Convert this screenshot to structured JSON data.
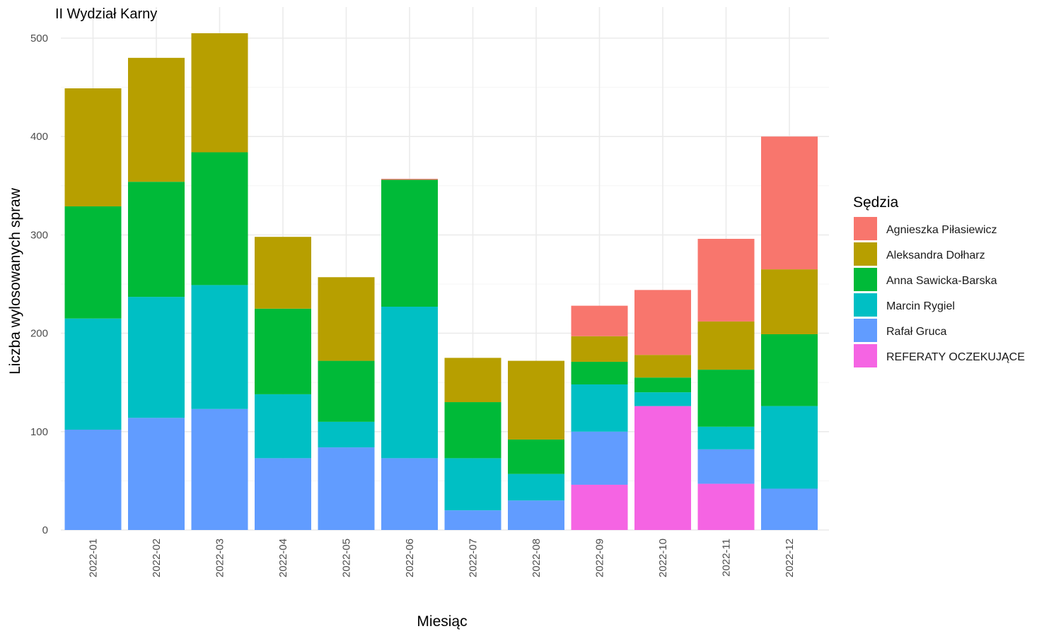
{
  "chart_data": {
    "type": "bar",
    "stacked": true,
    "title": "II Wydział Karny",
    "xlabel": "Miesiąc",
    "ylabel": "Liczba wylosowanych spraw",
    "ylim": [
      0,
      520
    ],
    "yticks": [
      0,
      100,
      200,
      300,
      400,
      500
    ],
    "grid": true,
    "legend": {
      "title": "Sędzia",
      "position": "right"
    },
    "categories": [
      "2022-01",
      "2022-02",
      "2022-03",
      "2022-04",
      "2022-05",
      "2022-06",
      "2022-07",
      "2022-08",
      "2022-09",
      "2022-10",
      "2022-11",
      "2022-12"
    ],
    "series": [
      {
        "name": "Agnieszka Piłasiewicz",
        "color": "#F8766D",
        "values": [
          0,
          0,
          0,
          0,
          0,
          1,
          0,
          0,
          31,
          66,
          84,
          135
        ]
      },
      {
        "name": "Aleksandra Dołharz",
        "color": "#B79F00",
        "values": [
          120,
          126,
          121,
          73,
          85,
          0,
          45,
          80,
          26,
          23,
          49,
          66
        ]
      },
      {
        "name": "Anna Sawicka-Barska",
        "color": "#00BA38",
        "values": [
          114,
          117,
          135,
          87,
          62,
          129,
          57,
          35,
          23,
          15,
          58,
          73
        ]
      },
      {
        "name": "Marcin Rygiel",
        "color": "#00BFC4",
        "values": [
          113,
          123,
          126,
          65,
          26,
          154,
          53,
          27,
          48,
          14,
          23,
          84
        ]
      },
      {
        "name": "Rafał Gruca",
        "color": "#619CFF",
        "values": [
          102,
          114,
          123,
          73,
          84,
          73,
          20,
          30,
          54,
          0,
          35,
          42
        ]
      },
      {
        "name": "REFERATY OCZEKUJĄCE",
        "color": "#F564E3",
        "values": [
          0,
          0,
          0,
          0,
          0,
          0,
          0,
          0,
          46,
          126,
          47,
          0
        ]
      }
    ]
  }
}
